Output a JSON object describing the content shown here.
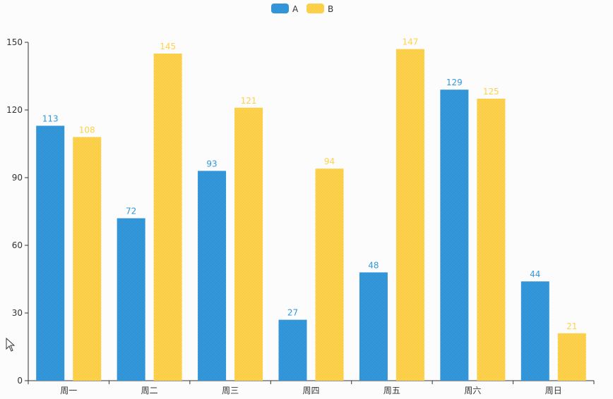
{
  "chart_data": {
    "type": "bar",
    "categories": [
      "周一",
      "周二",
      "周三",
      "周四",
      "周五",
      "周六",
      "周日"
    ],
    "series": [
      {
        "name": "A",
        "color": "#3398DB",
        "values": [
          113,
          72,
          93,
          27,
          48,
          129,
          44
        ]
      },
      {
        "name": "B",
        "color": "#FFD24D",
        "values": [
          108,
          145,
          121,
          94,
          147,
          125,
          21
        ]
      }
    ],
    "yticks": [
      "0",
      "30",
      "60",
      "90",
      "120",
      "150"
    ],
    "ylim": [
      0,
      150
    ],
    "legend_position": "top-center",
    "grid": false,
    "data_labels": true
  }
}
